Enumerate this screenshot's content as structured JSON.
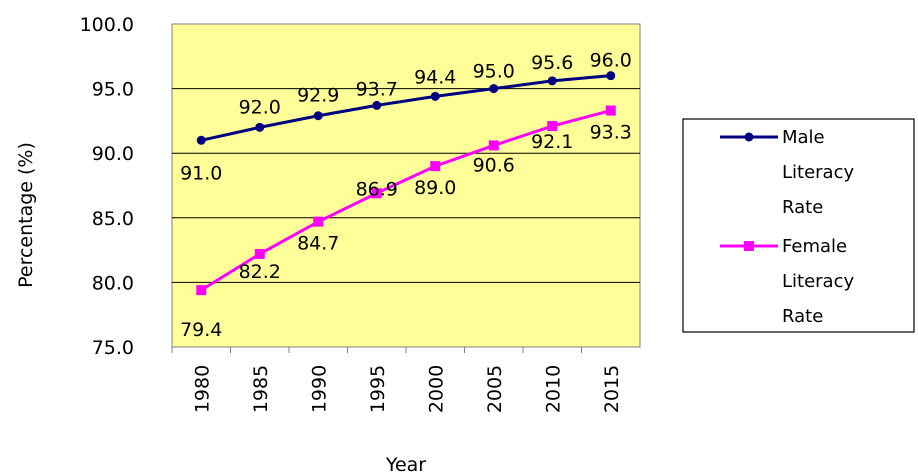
{
  "chart_data": {
    "type": "line",
    "title": "",
    "xlabel": "Year",
    "ylabel": "Percentage (%)",
    "categories": [
      "1980",
      "1985",
      "1990",
      "1995",
      "2000",
      "2005",
      "2010",
      "2015"
    ],
    "ylim": [
      75.0,
      100.0
    ],
    "yticks": [
      "75.0",
      "80.0",
      "85.0",
      "90.0",
      "95.0",
      "100.0"
    ],
    "grid": "horizontal",
    "legend_position": "right",
    "plot_background": "#FFFF99",
    "series": [
      {
        "name": "Male Literacy Rate",
        "legend_lines": [
          "Male",
          "Literacy",
          "Rate"
        ],
        "color": "#000080",
        "marker": "circle",
        "values": [
          91.0,
          92.0,
          92.9,
          93.7,
          94.4,
          95.0,
          95.6,
          96.0
        ],
        "labels": [
          "91.0",
          "92.0",
          "92.9",
          "93.7",
          "94.4",
          "95.0",
          "95.6",
          "96.0"
        ]
      },
      {
        "name": "Female Literacy Rate",
        "legend_lines": [
          "Female",
          "Literacy",
          "Rate"
        ],
        "color": "#FF00FF",
        "marker": "square",
        "values": [
          79.4,
          82.2,
          84.7,
          86.9,
          89.0,
          90.6,
          92.1,
          93.3
        ],
        "labels": [
          "79.4",
          "82.2",
          "84.7",
          "86.9",
          "89.0",
          "90.6",
          "92.1",
          "93.3"
        ]
      }
    ]
  }
}
